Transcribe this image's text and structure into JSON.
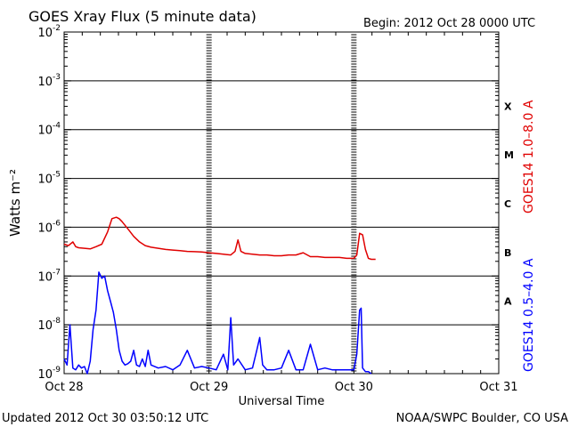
{
  "header": {
    "title": "GOES Xray Flux (5 minute data)",
    "begin": "Begin:  2012 Oct 28 0000 UTC"
  },
  "footer": {
    "updated": "Updated 2012 Oct 30 03:50:12 UTC",
    "source": "NOAA/SWPC Boulder, CO USA"
  },
  "chart_data": {
    "type": "line",
    "title": "GOES Xray Flux (5 minute data)",
    "xlabel": "Universal Time",
    "ylabel": "Watts m⁻²",
    "yscale": "log",
    "ylim": [
      1e-09,
      0.01
    ],
    "xlim": [
      0,
      3
    ],
    "x_tick_labels": [
      "Oct 28",
      "Oct 29",
      "Oct 30",
      "Oct 31"
    ],
    "y_tick_exponents": [
      -9,
      -8,
      -7,
      -6,
      -5,
      -4,
      -3,
      -2
    ],
    "flare_classes": [
      "A",
      "B",
      "C",
      "M",
      "X"
    ],
    "grid": "horizontal lines at each decade",
    "series": [
      {
        "name": "GOES14 1.0–8.0 A",
        "color": "#e00000",
        "x": [
          0.0,
          0.03,
          0.06,
          0.08,
          0.1,
          0.14,
          0.18,
          0.22,
          0.26,
          0.3,
          0.33,
          0.36,
          0.38,
          0.4,
          0.42,
          0.45,
          0.48,
          0.52,
          0.56,
          0.6,
          0.65,
          0.7,
          0.75,
          0.8,
          0.85,
          0.9,
          0.95,
          1.0,
          1.05,
          1.1,
          1.15,
          1.18,
          1.2,
          1.22,
          1.25,
          1.3,
          1.35,
          1.4,
          1.45,
          1.5,
          1.55,
          1.6,
          1.65,
          1.7,
          1.75,
          1.8,
          1.85,
          1.9,
          1.95,
          2.0,
          2.02,
          2.04,
          2.06,
          2.08,
          2.1,
          2.12,
          2.15
        ],
        "values": [
          4.5e-07,
          4.2e-07,
          5e-07,
          4e-07,
          3.8e-07,
          3.7e-07,
          3.6e-07,
          4e-07,
          4.5e-07,
          8e-07,
          1.5e-06,
          1.6e-06,
          1.5e-06,
          1.3e-06,
          1.1e-06,
          8.5e-07,
          6.5e-07,
          5e-07,
          4.2e-07,
          3.9e-07,
          3.7e-07,
          3.5e-07,
          3.4e-07,
          3.3e-07,
          3.2e-07,
          3.15e-07,
          3.1e-07,
          3e-07,
          2.9e-07,
          2.8e-07,
          2.7e-07,
          3.2e-07,
          5.5e-07,
          3.2e-07,
          2.9e-07,
          2.8e-07,
          2.7e-07,
          2.7e-07,
          2.6e-07,
          2.6e-07,
          2.7e-07,
          2.7e-07,
          3e-07,
          2.5e-07,
          2.5e-07,
          2.4e-07,
          2.4e-07,
          2.4e-07,
          2.3e-07,
          2.3e-07,
          2.7e-07,
          7.5e-07,
          7e-07,
          3.5e-07,
          2.3e-07,
          2.2e-07,
          2.2e-07
        ]
      },
      {
        "name": "GOES14 0.5–4.0 A",
        "color": "#0000ff",
        "x": [
          0.0,
          0.02,
          0.04,
          0.06,
          0.08,
          0.1,
          0.12,
          0.14,
          0.16,
          0.18,
          0.2,
          0.22,
          0.24,
          0.26,
          0.28,
          0.3,
          0.32,
          0.34,
          0.36,
          0.38,
          0.4,
          0.42,
          0.44,
          0.46,
          0.48,
          0.5,
          0.52,
          0.54,
          0.56,
          0.58,
          0.6,
          0.65,
          0.7,
          0.75,
          0.8,
          0.85,
          0.9,
          0.95,
          1.0,
          1.05,
          1.1,
          1.13,
          1.15,
          1.17,
          1.2,
          1.25,
          1.3,
          1.33,
          1.35,
          1.37,
          1.4,
          1.45,
          1.5,
          1.55,
          1.6,
          1.65,
          1.7,
          1.75,
          1.8,
          1.85,
          1.9,
          1.95,
          2.0,
          2.02,
          2.04,
          2.05,
          2.06,
          2.08,
          2.1,
          2.12
        ],
        "values": [
          2e-09,
          1.5e-09,
          1e-08,
          1.3e-09,
          1.2e-09,
          1.5e-09,
          1.3e-09,
          1.4e-09,
          1e-09,
          1.8e-09,
          8e-09,
          2e-08,
          1.2e-07,
          9e-08,
          1e-07,
          5e-08,
          3e-08,
          1.8e-08,
          8e-09,
          3e-09,
          1.8e-09,
          1.5e-09,
          1.6e-09,
          1.8e-09,
          3e-09,
          1.5e-09,
          1.4e-09,
          2e-09,
          1.4e-09,
          3e-09,
          1.5e-09,
          1.3e-09,
          1.4e-09,
          1.2e-09,
          1.5e-09,
          3e-09,
          1.3e-09,
          1.4e-09,
          1.3e-09,
          1.2e-09,
          2.5e-09,
          1.2e-09,
          1.4e-08,
          1.5e-09,
          2e-09,
          1.2e-09,
          1.3e-09,
          3e-09,
          5.5e-09,
          1.5e-09,
          1.2e-09,
          1.2e-09,
          1.3e-09,
          3e-09,
          1.2e-09,
          1.2e-09,
          4e-09,
          1.2e-09,
          1.3e-09,
          1.2e-09,
          1.2e-09,
          1.2e-09,
          1.2e-09,
          2.5e-09,
          2e-08,
          2.2e-08,
          1.3e-09,
          1.1e-09,
          1.1e-09,
          1e-09
        ]
      }
    ]
  }
}
